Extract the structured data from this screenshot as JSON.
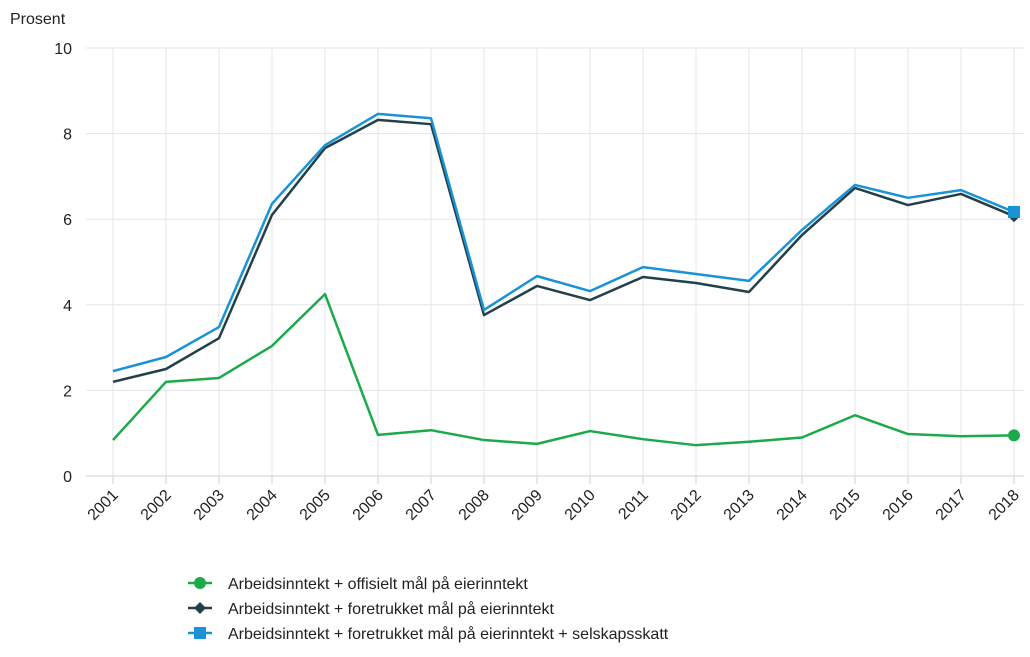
{
  "chart_data": {
    "type": "line",
    "y_label": "Prosent",
    "categories": [
      "2001",
      "2002",
      "2003",
      "2004",
      "2005",
      "2006",
      "2007",
      "2008",
      "2009",
      "2010",
      "2011",
      "2012",
      "2013",
      "2014",
      "2015",
      "2016",
      "2017",
      "2018"
    ],
    "ylim": [
      0,
      10
    ],
    "yticks": [
      0,
      2,
      4,
      6,
      8,
      10
    ],
    "grid": true,
    "series": [
      {
        "name": "Arbeidsinntekt + offisielt mål på eierinntekt",
        "color": "#1aaa4a",
        "marker": "circle",
        "values": [
          0.84,
          2.2,
          2.29,
          3.04,
          4.25,
          0.96,
          1.07,
          0.84,
          0.75,
          1.05,
          0.86,
          0.72,
          0.8,
          0.9,
          1.42,
          0.98,
          0.93,
          0.95
        ]
      },
      {
        "name": "Arbeidsinntekt + foretrukket mål på eierinntekt",
        "color": "#23404a",
        "marker": "diamond",
        "values": [
          2.2,
          2.5,
          3.22,
          6.1,
          7.66,
          8.32,
          8.22,
          3.76,
          4.44,
          4.11,
          4.65,
          4.51,
          4.3,
          5.63,
          6.73,
          6.33,
          6.59,
          6.07
        ]
      },
      {
        "name": "Arbeidsinntekt + foretrukket mål på eierinntekt + selskapsskatt",
        "color": "#1a93d6",
        "marker": "square",
        "values": [
          2.45,
          2.78,
          3.48,
          6.36,
          7.73,
          8.46,
          8.36,
          3.88,
          4.67,
          4.32,
          4.88,
          4.72,
          4.56,
          5.75,
          6.8,
          6.5,
          6.68,
          6.17
        ]
      }
    ]
  }
}
